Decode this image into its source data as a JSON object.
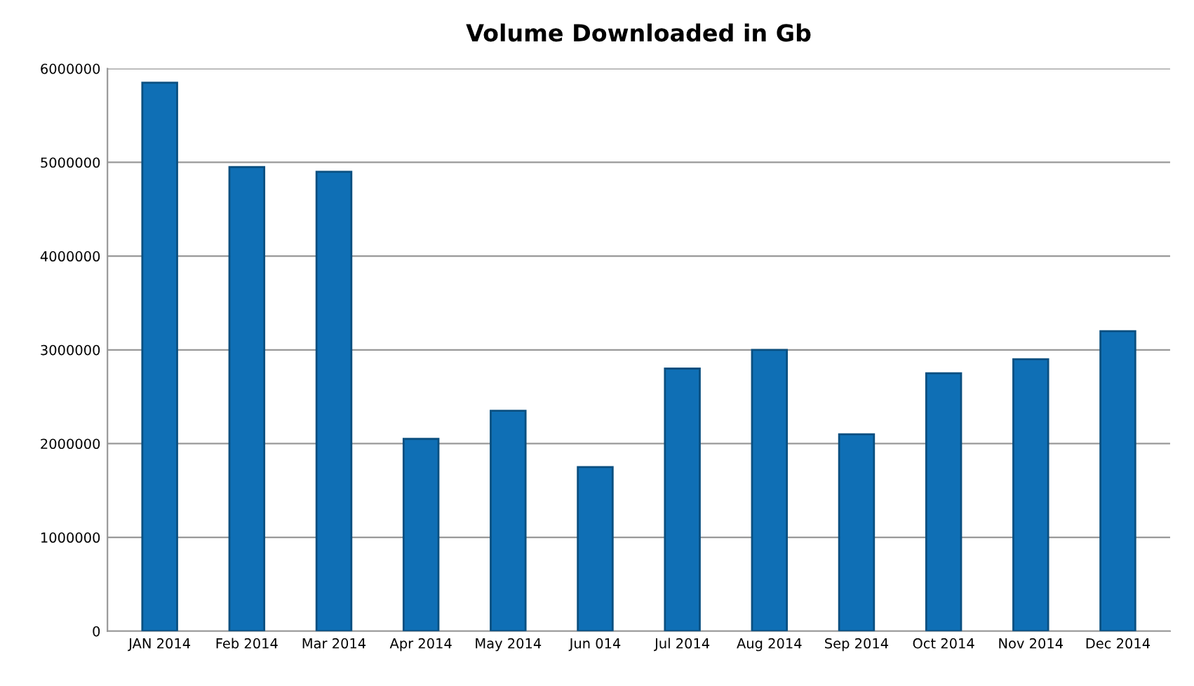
{
  "chart_data": {
    "type": "bar",
    "title": "Volume Downloaded in Gb",
    "categories": [
      "JAN 2014",
      "Feb 2014",
      "Mar 2014",
      "Apr 2014",
      "May 2014",
      "Jun 014",
      "Jul 2014",
      "Aug 2014",
      "Sep 2014",
      "Oct 2014",
      "Nov 2014",
      "Dec 2014"
    ],
    "values": [
      5850000,
      4950000,
      4900000,
      2050000,
      2350000,
      1750000,
      2800000,
      3000000,
      2100000,
      2750000,
      2900000,
      3200000
    ],
    "color": "#0f6fb5",
    "ylim": [
      0,
      6000000
    ],
    "yticks": [
      0,
      1000000,
      2000000,
      3000000,
      4000000,
      5000000,
      6000000
    ],
    "grid": "y"
  }
}
